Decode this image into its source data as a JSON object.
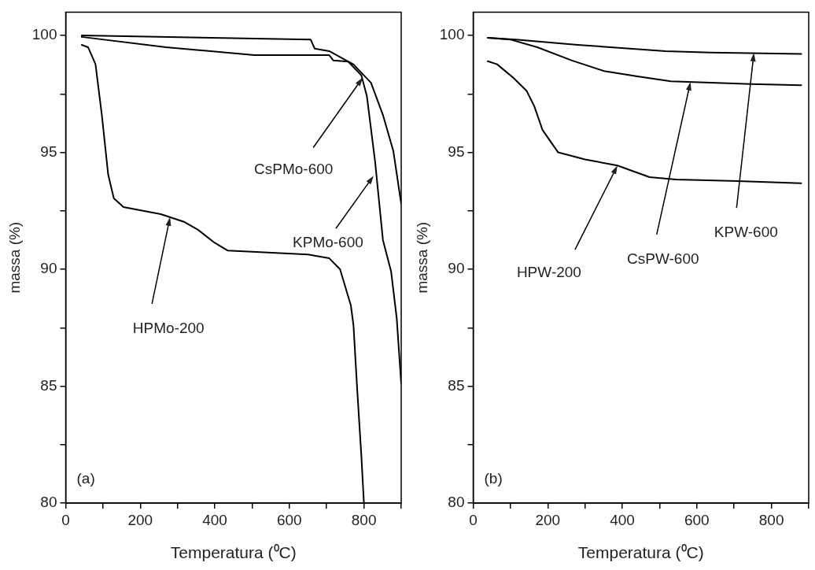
{
  "chart_data": [
    {
      "type": "line",
      "xlabel": "Temperatura (⁰C)",
      "ylabel": "massa (%)",
      "xlim": [
        0,
        900
      ],
      "ylim": [
        80,
        101
      ],
      "xticks": [
        0,
        {
          "value": 100,
          "label": null
        },
        200,
        {
          "value": 300,
          "label": null
        },
        400,
        {
          "value": 500,
          "label": null
        },
        600,
        {
          "value": 700,
          "label": null
        },
        800,
        {
          "value": 900,
          "label": null
        }
      ],
      "yticks": [
        80,
        {
          "value": 82.5,
          "label": null
        },
        85,
        {
          "value": 87.5,
          "label": null
        },
        90,
        {
          "value": 92.5,
          "label": null
        },
        95,
        {
          "value": 97.5,
          "label": null
        },
        100
      ],
      "grid": false,
      "legend": false,
      "marker": "none",
      "line_style": "solid",
      "series": [
        {
          "color": "#000000",
          "x": [
            43,
            657,
            668,
            707,
            772,
            819,
            851,
            879,
            900
          ],
          "values": [
            100.0,
            99.83,
            99.44,
            99.33,
            98.76,
            97.98,
            96.6,
            95.05,
            92.8
          ]
        },
        {
          "color": "#000000",
          "x": [
            43,
            269,
            506,
            707,
            718,
            758,
            793,
            808,
            830,
            851,
            873,
            888,
            900
          ],
          "values": [
            99.94,
            99.5,
            99.16,
            99.16,
            98.93,
            98.88,
            98.3,
            97.4,
            94.6,
            91.25,
            89.9,
            87.9,
            85.1
          ]
        },
        {
          "color": "#000000",
          "x": [
            43,
            60,
            80,
            97,
            114,
            129,
            155,
            255,
            319,
            355,
            399,
            435,
            650,
            707,
            736,
            765,
            772,
            782,
            793,
            800
          ],
          "values": [
            99.6,
            99.5,
            98.77,
            96.6,
            94.05,
            93.04,
            92.66,
            92.36,
            92.02,
            91.69,
            91.14,
            90.8,
            90.63,
            90.47,
            90.0,
            88.45,
            87.6,
            84.85,
            82.05,
            80.0
          ]
        }
      ],
      "annotations": [
        {
          "text": "CsPMo-600",
          "x": 797,
          "y": 98.2
        },
        {
          "text": "KPMo-600",
          "x": 826,
          "y": 94.0
        },
        {
          "text": "HPMo-200",
          "x": 280,
          "y": 92.23
        },
        "(a)"
      ]
    },
    {
      "type": "line",
      "xlabel": "Temperatura (⁰C)",
      "ylabel": "massa (%)",
      "xlim": [
        0,
        900
      ],
      "ylim": [
        80,
        101
      ],
      "xticks": [
        0,
        {
          "value": 100,
          "label": null
        },
        200,
        {
          "value": 300,
          "label": null
        },
        400,
        {
          "value": 500,
          "label": null
        },
        600,
        {
          "value": 700,
          "label": null
        },
        800,
        {
          "value": 900,
          "label": null
        }
      ],
      "yticks": [
        80,
        {
          "value": 82.5,
          "label": null
        },
        85,
        {
          "value": 87.5,
          "label": null
        },
        90,
        {
          "value": 92.5,
          "label": null
        },
        95,
        {
          "value": 97.5,
          "label": null
        },
        100
      ],
      "grid": false,
      "legend": false,
      "marker": "none",
      "line_style": "solid",
      "series": [
        {
          "color": "#000000",
          "x": [
            39,
            114,
            280,
            516,
            637,
            880
          ],
          "values": [
            99.9,
            99.83,
            99.6,
            99.33,
            99.27,
            99.21
          ]
        },
        {
          "color": "#000000",
          "x": [
            39,
            99,
            172,
            265,
            351,
            437,
            530,
            744,
            880
          ],
          "values": [
            99.9,
            99.83,
            99.5,
            98.93,
            98.48,
            98.26,
            98.04,
            97.92,
            97.87
          ]
        },
        {
          "color": "#000000",
          "x": [
            39,
            64,
            107,
            143,
            164,
            186,
            228,
            300,
            387,
            473,
            544,
            710,
            880
          ],
          "values": [
            98.9,
            98.77,
            98.2,
            97.64,
            96.97,
            95.96,
            95.0,
            94.7,
            94.44,
            93.94,
            93.84,
            93.77,
            93.68
          ]
        }
      ],
      "annotations": [
        {
          "text": "HPW-200",
          "x": 387,
          "y": 94.44
        },
        {
          "text": "CsPW-600",
          "x": 583,
          "y": 98.02
        },
        {
          "text": "KPW-600",
          "x": 753,
          "y": 99.26
        },
        "(b)"
      ]
    }
  ]
}
